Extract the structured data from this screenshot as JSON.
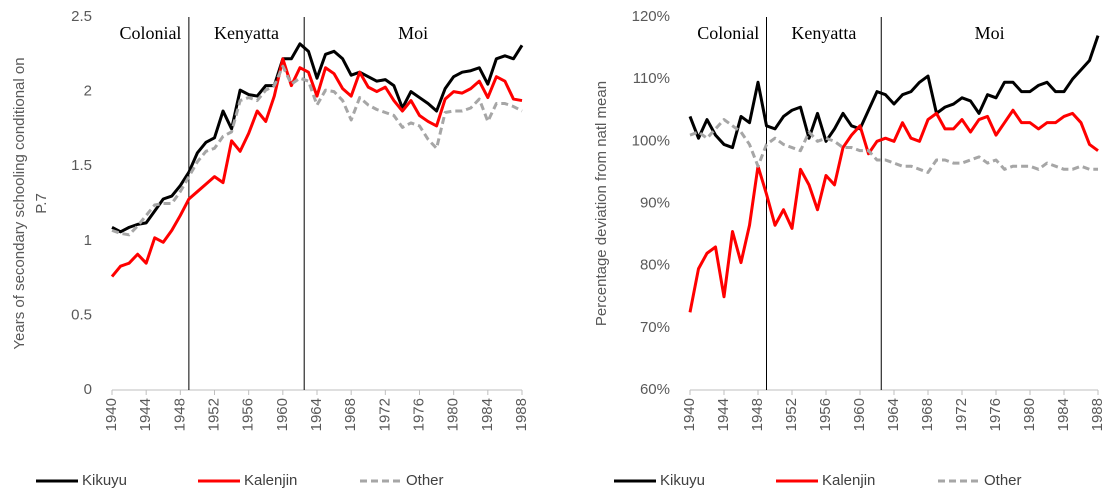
{
  "chart_data": [
    {
      "type": "line",
      "ylabel": [
        "Years of secondary schooling conditional on",
        "P.7"
      ],
      "eras": [
        "Colonial",
        "Kenyatta",
        "Moi"
      ],
      "dividers": [
        1949,
        1962.5
      ],
      "x": [
        1940,
        1941,
        1942,
        1943,
        1944,
        1945,
        1946,
        1947,
        1948,
        1949,
        1950,
        1951,
        1952,
        1953,
        1954,
        1955,
        1956,
        1957,
        1958,
        1959,
        1960,
        1961,
        1962,
        1963,
        1964,
        1965,
        1966,
        1967,
        1968,
        1969,
        1970,
        1971,
        1972,
        1973,
        1974,
        1975,
        1976,
        1977,
        1978,
        1979,
        1980,
        1981,
        1982,
        1983,
        1984,
        1985,
        1986,
        1987,
        1988
      ],
      "xlim": [
        1940,
        1988
      ],
      "xticks": [
        1940,
        1944,
        1948,
        1952,
        1956,
        1960,
        1964,
        1968,
        1972,
        1976,
        1980,
        1984,
        1988
      ],
      "ylim": [
        0,
        2.5
      ],
      "yticks": [
        0,
        0.5,
        1,
        1.5,
        2,
        2.5
      ],
      "grid": false,
      "series": [
        {
          "name": "Kikuyu",
          "color": "#000000",
          "dashed": false,
          "values": [
            1.09,
            1.06,
            1.09,
            1.11,
            1.12,
            1.2,
            1.28,
            1.3,
            1.37,
            1.46,
            1.59,
            1.66,
            1.69,
            1.87,
            1.75,
            2.01,
            1.98,
            1.97,
            2.04,
            2.04,
            2.22,
            2.22,
            2.32,
            2.27,
            2.09,
            2.25,
            2.27,
            2.22,
            2.11,
            2.13,
            2.1,
            2.07,
            2.08,
            2.04,
            1.89,
            2.0,
            1.96,
            1.92,
            1.87,
            2.02,
            2.1,
            2.13,
            2.14,
            2.16,
            2.05,
            2.22,
            2.24,
            2.22,
            2.31
          ]
        },
        {
          "name": "Kalenjin",
          "color": "#ff0000",
          "dashed": false,
          "values": [
            0.76,
            0.83,
            0.85,
            0.91,
            0.85,
            1.02,
            0.99,
            1.07,
            1.17,
            1.28,
            1.33,
            1.38,
            1.43,
            1.39,
            1.67,
            1.6,
            1.72,
            1.87,
            1.8,
            1.97,
            2.22,
            2.04,
            2.16,
            2.13,
            1.97,
            2.16,
            2.12,
            2.02,
            1.97,
            2.13,
            2.03,
            2.0,
            2.03,
            1.94,
            1.87,
            1.94,
            1.84,
            1.8,
            1.77,
            1.95,
            2.0,
            1.99,
            2.02,
            2.07,
            1.96,
            2.1,
            2.07,
            1.95,
            1.94
          ]
        },
        {
          "name": "Other",
          "color": "#a6a6a6",
          "dashed": true,
          "values": [
            1.07,
            1.05,
            1.04,
            1.1,
            1.17,
            1.24,
            1.25,
            1.25,
            1.33,
            1.43,
            1.53,
            1.6,
            1.62,
            1.7,
            1.73,
            1.94,
            1.96,
            1.94,
            2.01,
            2.04,
            2.17,
            2.05,
            2.09,
            2.07,
            1.91,
            2.01,
            2.0,
            1.94,
            1.81,
            1.96,
            1.91,
            1.88,
            1.86,
            1.84,
            1.76,
            1.79,
            1.77,
            1.68,
            1.62,
            1.86,
            1.87,
            1.87,
            1.89,
            1.95,
            1.8,
            1.92,
            1.92,
            1.9,
            1.87
          ]
        }
      ]
    },
    {
      "type": "line",
      "ylabel": [
        "Percentage deviation from natl mean"
      ],
      "eras": [
        "Colonial",
        "Kenyatta",
        "Moi"
      ],
      "dividers": [
        1949,
        1962.5
      ],
      "x": [
        1940,
        1941,
        1942,
        1943,
        1944,
        1945,
        1946,
        1947,
        1948,
        1949,
        1950,
        1951,
        1952,
        1953,
        1954,
        1955,
        1956,
        1957,
        1958,
        1959,
        1960,
        1961,
        1962,
        1963,
        1964,
        1965,
        1966,
        1967,
        1968,
        1969,
        1970,
        1971,
        1972,
        1973,
        1974,
        1975,
        1976,
        1977,
        1978,
        1979,
        1980,
        1981,
        1982,
        1983,
        1984,
        1985,
        1986,
        1987,
        1988
      ],
      "xlim": [
        1940,
        1988
      ],
      "xticks": [
        1940,
        1944,
        1948,
        1952,
        1956,
        1960,
        1964,
        1968,
        1972,
        1976,
        1980,
        1984,
        1988
      ],
      "ylim": [
        60,
        120
      ],
      "yticks": [
        {
          "value": 60,
          "label": "60%"
        },
        {
          "value": 70,
          "label": "70%"
        },
        {
          "value": 80,
          "label": "80%"
        },
        {
          "value": 90,
          "label": "90%"
        },
        {
          "value": 100,
          "label": "100%"
        },
        {
          "value": 110,
          "label": "110%"
        },
        {
          "value": 120,
          "label": "120%"
        }
      ],
      "grid": false,
      "series": [
        {
          "name": "Kikuyu",
          "color": "#000000",
          "dashed": false,
          "values": [
            104,
            100.5,
            103.5,
            101,
            99.5,
            99,
            104,
            103,
            109.5,
            102.5,
            102,
            104,
            105,
            105.5,
            100.5,
            104.5,
            100,
            102,
            104.5,
            102.5,
            102,
            105,
            108,
            107.5,
            106,
            107.5,
            108,
            109.5,
            110.5,
            104.5,
            105.5,
            106,
            107,
            106.5,
            104.5,
            107.5,
            107,
            109.5,
            109.5,
            108,
            108,
            109,
            109.5,
            108,
            108,
            110,
            111.5,
            113,
            117
          ]
        },
        {
          "name": "Kalenjin",
          "color": "#ff0000",
          "dashed": false,
          "values": [
            72.5,
            79.5,
            82,
            83,
            75,
            85.5,
            80.5,
            86.5,
            96,
            91.5,
            86.5,
            89,
            86,
            95.5,
            93,
            89,
            94.5,
            93,
            99,
            101,
            102.5,
            98,
            100,
            100.5,
            100,
            103,
            100.5,
            100,
            103.5,
            104.5,
            102,
            102,
            103.5,
            101.5,
            103.5,
            104,
            101,
            103,
            105,
            103,
            103,
            102,
            103,
            103,
            104,
            104.5,
            103,
            99.5,
            98.5
          ]
        },
        {
          "name": "Other",
          "color": "#a6a6a6",
          "dashed": true,
          "values": [
            101,
            101.5,
            100.5,
            102,
            103.5,
            102.5,
            101.5,
            99.5,
            96,
            99.5,
            100.5,
            99.5,
            99,
            98.5,
            101.5,
            100,
            100.5,
            100,
            99,
            99,
            98.5,
            98.5,
            97,
            97,
            96.5,
            96,
            96,
            95.5,
            95,
            97,
            97,
            96.5,
            96.5,
            97,
            97.5,
            96.5,
            97,
            95.5,
            96,
            96,
            96,
            95.5,
            96.5,
            96,
            95.5,
            95.5,
            96,
            95.5,
            95.5
          ]
        }
      ]
    }
  ]
}
